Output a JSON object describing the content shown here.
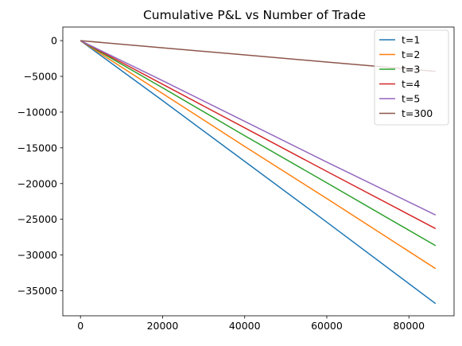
{
  "chart_data": {
    "type": "line",
    "title": "Cumulative P&L vs Number of Trade",
    "xlabel": "",
    "ylabel": "",
    "xlim": [
      -4300,
      91000
    ],
    "ylim": [
      -38500,
      1900
    ],
    "xticks": [
      0,
      20000,
      40000,
      60000,
      80000
    ],
    "yticks": [
      0,
      -5000,
      -10000,
      -15000,
      -20000,
      -25000,
      -30000,
      -35000
    ],
    "grid": false,
    "legend_position": "top-right",
    "series": [
      {
        "name": "t=1",
        "color": "#1f77b4",
        "x": [
          0,
          20000,
          40000,
          60000,
          86500
        ],
        "y": [
          0,
          -8400,
          -16900,
          -25400,
          -36800
        ]
      },
      {
        "name": "t=2",
        "color": "#ff7f0e",
        "x": [
          0,
          20000,
          40000,
          60000,
          86500
        ],
        "y": [
          0,
          -7400,
          -14800,
          -22100,
          -31900
        ]
      },
      {
        "name": "t=3",
        "color": "#2ca02c",
        "x": [
          0,
          20000,
          40000,
          60000,
          86500
        ],
        "y": [
          0,
          -6600,
          -13300,
          -19900,
          -28700
        ]
      },
      {
        "name": "t=4",
        "color": "#d62728",
        "x": [
          0,
          20000,
          40000,
          60000,
          86500
        ],
        "y": [
          0,
          -6100,
          -12200,
          -18300,
          -26300
        ]
      },
      {
        "name": "t=5",
        "color": "#9467bd",
        "x": [
          0,
          20000,
          40000,
          60000,
          86500
        ],
        "y": [
          0,
          -5600,
          -11300,
          -17000,
          -24400
        ]
      },
      {
        "name": "t=300",
        "color": "#8c564b",
        "x": [
          0,
          20000,
          40000,
          60000,
          86500
        ],
        "y": [
          0,
          -1000,
          -2000,
          -3000,
          -4300
        ]
      }
    ]
  }
}
